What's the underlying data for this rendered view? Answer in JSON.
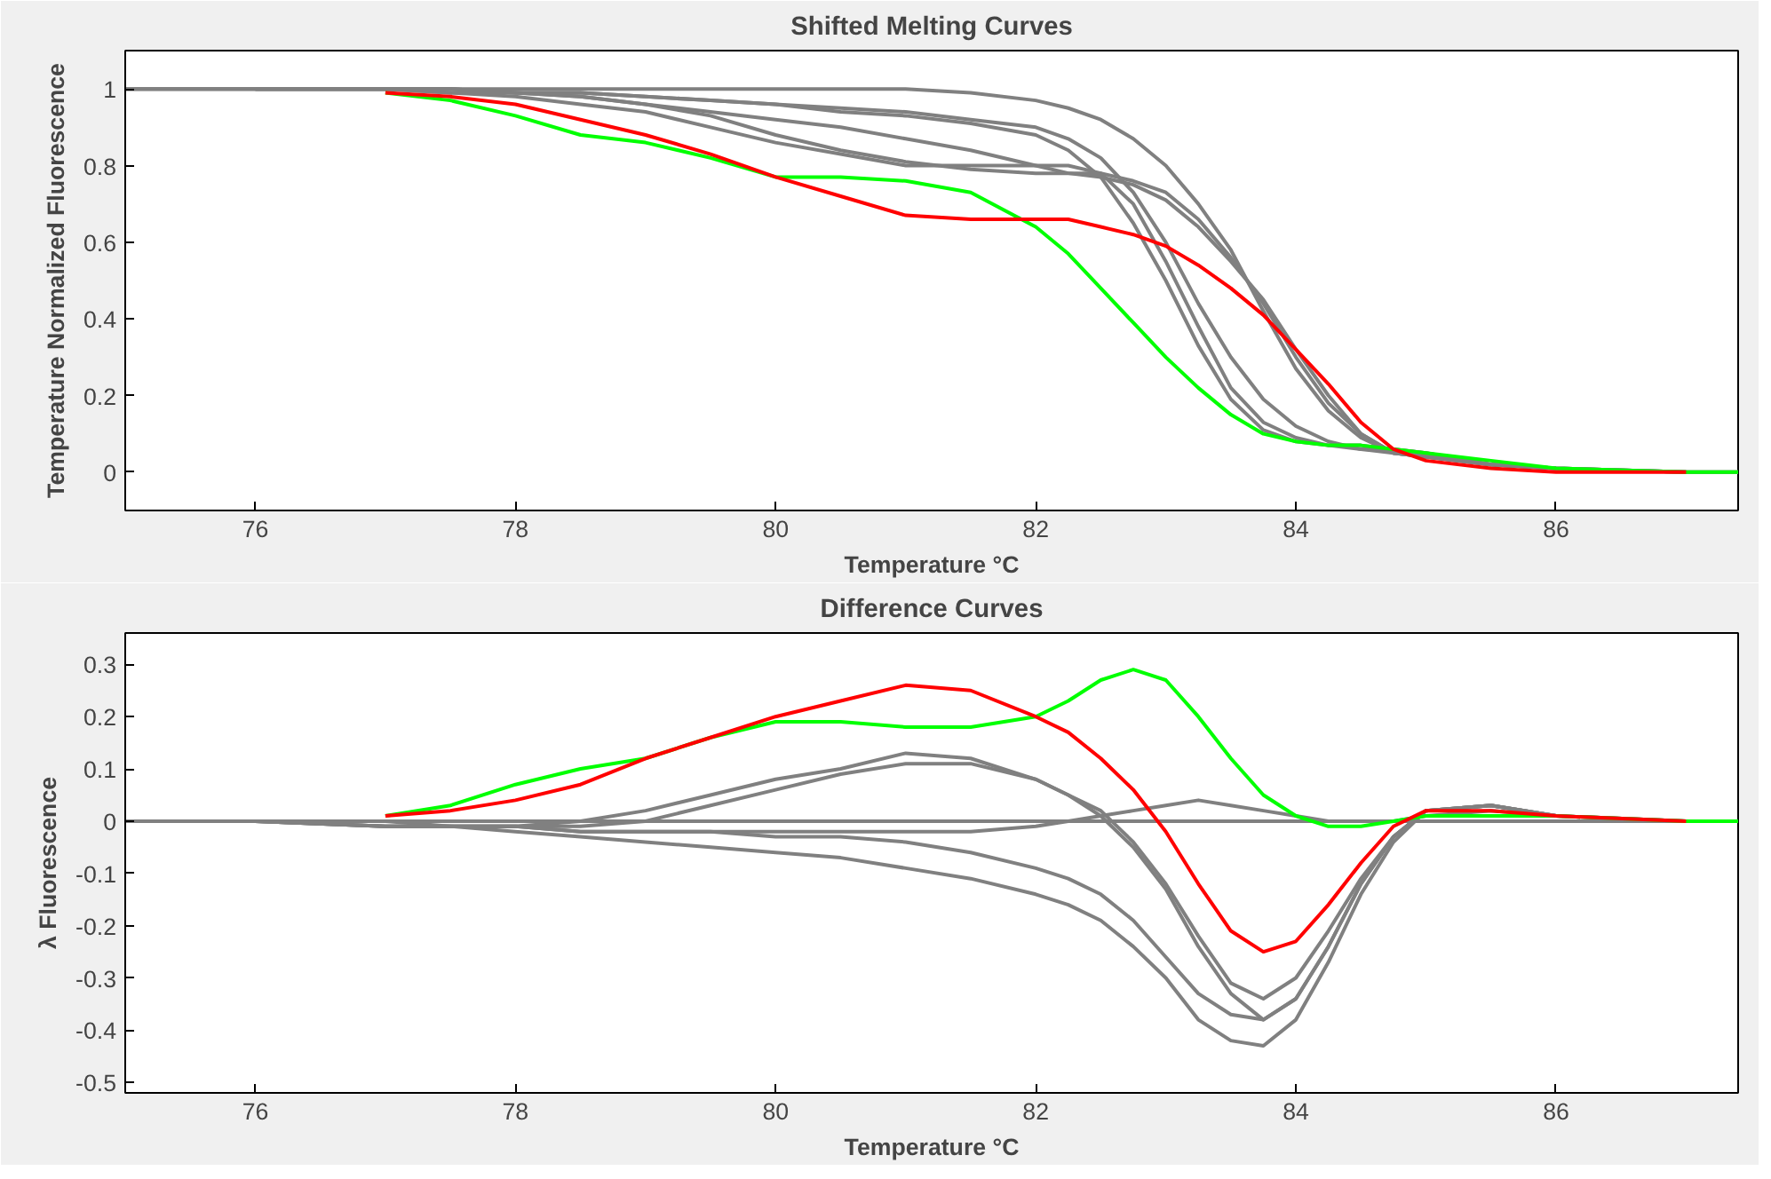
{
  "chart_data": [
    {
      "type": "line",
      "title": "Shifted Melting Curves",
      "xlabel": "Temperature °C",
      "ylabel": "Temperature Normalized Fluorescence",
      "xlim": [
        75,
        87.4
      ],
      "xticks": [
        76,
        78,
        80,
        82,
        84,
        86
      ],
      "ylim": [
        -0.1,
        1.1
      ],
      "yticks": [
        0,
        0.2,
        0.4,
        0.6,
        0.8,
        1
      ],
      "grid": false,
      "series": [
        {
          "color": "#808080",
          "x": [
            75,
            76,
            77,
            77.5,
            78,
            78.5,
            79,
            79.5,
            80,
            80.5,
            81,
            81.5,
            82,
            82.25,
            82.5,
            82.75,
            83,
            83.25,
            83.5,
            83.75,
            84,
            84.25,
            84.5,
            84.75,
            85,
            85.5,
            86,
            87,
            87.4
          ],
          "values": [
            1,
            1,
            1,
            1,
            0.99,
            0.99,
            0.98,
            0.97,
            0.96,
            0.94,
            0.93,
            0.91,
            0.88,
            0.84,
            0.77,
            0.65,
            0.5,
            0.33,
            0.19,
            0.11,
            0.08,
            0.07,
            0.07,
            0.06,
            0.05,
            0.02,
            0.01,
            0,
            0
          ]
        },
        {
          "color": "#808080",
          "x": [
            75,
            76,
            77,
            77.5,
            78,
            78.5,
            79,
            79.5,
            80,
            80.5,
            81,
            81.5,
            82,
            82.25,
            82.5,
            82.75,
            83,
            83.25,
            83.5,
            83.75,
            84,
            84.25,
            84.5,
            84.75,
            85,
            85.5,
            86,
            87
          ],
          "values": [
            1,
            1,
            1,
            0.99,
            0.98,
            0.96,
            0.94,
            0.9,
            0.86,
            0.83,
            0.8,
            0.8,
            0.8,
            0.8,
            0.78,
            0.7,
            0.55,
            0.38,
            0.22,
            0.13,
            0.09,
            0.07,
            0.06,
            0.06,
            0.05,
            0.02,
            0.01,
            0
          ]
        },
        {
          "color": "#808080",
          "x": [
            75,
            76,
            77,
            77.5,
            78,
            78.5,
            79,
            79.5,
            80,
            80.5,
            81,
            81.5,
            82,
            82.25,
            82.5,
            82.75,
            83,
            83.25,
            83.5,
            83.75,
            84,
            84.25,
            84.5,
            84.75,
            85,
            85.5,
            86
          ],
          "values": [
            1,
            1,
            1,
            1,
            1,
            1,
            1,
            1,
            1,
            1,
            1,
            0.99,
            0.97,
            0.95,
            0.92,
            0.87,
            0.8,
            0.7,
            0.58,
            0.42,
            0.27,
            0.16,
            0.09,
            0.05,
            0.04,
            0.02,
            0.01
          ]
        },
        {
          "color": "#808080",
          "x": [
            76,
            77,
            77.5,
            78,
            78.5,
            79,
            79.5,
            80,
            80.5,
            81,
            81.5,
            82,
            82.25,
            82.5,
            82.75,
            83,
            83.25,
            83.5,
            83.75,
            84,
            84.25,
            84.5,
            84.75,
            85,
            85.5,
            86,
            87,
            87.4
          ],
          "values": [
            1,
            1,
            0.99,
            0.99,
            0.98,
            0.96,
            0.94,
            0.92,
            0.9,
            0.87,
            0.84,
            0.8,
            0.78,
            0.77,
            0.75,
            0.71,
            0.64,
            0.55,
            0.45,
            0.32,
            0.2,
            0.1,
            0.05,
            0.04,
            0.02,
            0.01,
            0,
            0
          ]
        },
        {
          "color": "#808080",
          "x": [
            76,
            77,
            77.5,
            78,
            78.5,
            79,
            79.5,
            80,
            80.5,
            81,
            81.5,
            82,
            82.25,
            82.5,
            82.75,
            83,
            83.25,
            83.5,
            83.75,
            84,
            84.25,
            84.5,
            84.75,
            85,
            85.5,
            86,
            87
          ],
          "values": [
            1,
            1,
            1,
            0.99,
            0.98,
            0.96,
            0.93,
            0.88,
            0.84,
            0.81,
            0.79,
            0.78,
            0.78,
            0.78,
            0.76,
            0.73,
            0.66,
            0.56,
            0.44,
            0.3,
            0.18,
            0.1,
            0.05,
            0.04,
            0.02,
            0.01,
            0
          ]
        },
        {
          "color": "#808080",
          "x": [
            76,
            77,
            77.5,
            78,
            78.5,
            79,
            79.5,
            80,
            80.5,
            81,
            81.5,
            82,
            82.25,
            82.5,
            82.75,
            83,
            83.25,
            83.5,
            83.75,
            84,
            84.25,
            84.5,
            84.75,
            85,
            85.5,
            86
          ],
          "values": [
            1,
            1,
            1,
            0.99,
            0.99,
            0.98,
            0.97,
            0.96,
            0.95,
            0.94,
            0.92,
            0.9,
            0.87,
            0.82,
            0.73,
            0.6,
            0.44,
            0.3,
            0.19,
            0.12,
            0.08,
            0.06,
            0.05,
            0.04,
            0.02,
            0.01
          ]
        },
        {
          "color": "#00ff00",
          "x": [
            77,
            77.5,
            78,
            78.5,
            79,
            79.5,
            80,
            80.5,
            81,
            81.5,
            82,
            82.25,
            82.5,
            82.75,
            83,
            83.25,
            83.5,
            83.75,
            84,
            84.25,
            84.5,
            84.75,
            85,
            85.5,
            86,
            87,
            87.4
          ],
          "values": [
            0.99,
            0.97,
            0.93,
            0.88,
            0.86,
            0.82,
            0.77,
            0.77,
            0.76,
            0.73,
            0.64,
            0.57,
            0.48,
            0.39,
            0.3,
            0.22,
            0.15,
            0.1,
            0.08,
            0.07,
            0.07,
            0.06,
            0.05,
            0.03,
            0.01,
            0,
            0
          ]
        },
        {
          "color": "#ff0000",
          "x": [
            77,
            77.5,
            78,
            78.5,
            79,
            79.5,
            80,
            80.5,
            81,
            81.5,
            82,
            82.25,
            82.5,
            82.75,
            83,
            83.25,
            83.5,
            83.75,
            84,
            84.25,
            84.5,
            84.75,
            85,
            85.5,
            86,
            87
          ],
          "values": [
            0.99,
            0.98,
            0.96,
            0.92,
            0.88,
            0.83,
            0.77,
            0.72,
            0.67,
            0.66,
            0.66,
            0.66,
            0.64,
            0.62,
            0.59,
            0.54,
            0.48,
            0.41,
            0.32,
            0.23,
            0.13,
            0.06,
            0.03,
            0.01,
            0,
            0
          ]
        }
      ]
    },
    {
      "type": "line",
      "title": "Difference Curves",
      "xlabel": "Temperature °C",
      "ylabel": "λ Fluorescence",
      "xlim": [
        75,
        87.4
      ],
      "xticks": [
        76,
        78,
        80,
        82,
        84,
        86
      ],
      "ylim": [
        -0.52,
        0.36
      ],
      "yticks": [
        -0.5,
        -0.4,
        -0.3,
        -0.2,
        -0.1,
        0,
        0.1,
        0.2,
        0.3
      ],
      "grid": false,
      "series": [
        {
          "color": "#808080",
          "x": [
            75,
            76,
            77,
            77.5,
            78,
            78.5,
            79,
            79.5,
            80,
            80.5,
            81,
            81.5,
            82,
            82.25,
            82.5,
            82.75,
            83,
            83.25,
            83.5,
            83.75,
            84,
            84.25,
            84.5,
            84.75,
            85,
            85.5,
            86,
            87,
            87.4
          ],
          "values": [
            0,
            0,
            0,
            0,
            0,
            0,
            0,
            0,
            0,
            0,
            0,
            0,
            0,
            0,
            0,
            0,
            0,
            0,
            0,
            0,
            0,
            0,
            0,
            0,
            0,
            0,
            0,
            0,
            0
          ]
        },
        {
          "color": "#808080",
          "x": [
            75,
            76,
            77,
            77.5,
            78,
            78.5,
            79,
            79.5,
            80,
            80.5,
            81,
            81.5,
            82,
            82.25,
            82.5,
            82.75,
            83,
            83.25,
            83.5,
            83.75,
            84,
            84.25,
            84.5,
            84.75,
            85,
            85.5,
            86,
            87
          ],
          "values": [
            0,
            0,
            -0.01,
            -0.01,
            -0.01,
            0,
            0.02,
            0.05,
            0.08,
            0.1,
            0.13,
            0.12,
            0.08,
            0.05,
            0.01,
            -0.05,
            -0.13,
            -0.24,
            -0.33,
            -0.38,
            -0.34,
            -0.24,
            -0.12,
            -0.03,
            0.02,
            0.03,
            0.01,
            0
          ]
        },
        {
          "color": "#808080",
          "x": [
            75,
            76,
            77,
            77.5,
            78,
            78.5,
            79,
            79.5,
            80,
            80.5,
            81,
            81.5,
            82,
            82.25,
            82.5,
            82.75,
            83,
            83.25,
            83.5,
            83.75,
            84,
            84.25,
            84.5,
            84.75,
            85,
            85.5,
            86
          ],
          "values": [
            0,
            0,
            -0.01,
            -0.01,
            -0.01,
            -0.01,
            0,
            0.03,
            0.06,
            0.09,
            0.11,
            0.11,
            0.08,
            0.05,
            0.02,
            -0.04,
            -0.12,
            -0.22,
            -0.31,
            -0.34,
            -0.3,
            -0.21,
            -0.11,
            -0.03,
            0.02,
            0.03,
            0.01
          ]
        },
        {
          "color": "#808080",
          "x": [
            76,
            77,
            77.5,
            78,
            78.5,
            79,
            79.5,
            80,
            80.5,
            81,
            81.5,
            82,
            82.25,
            82.5,
            82.75,
            83,
            83.25,
            83.5,
            83.75,
            84,
            84.25,
            84.5,
            84.75,
            85,
            85.5,
            86,
            87,
            87.4
          ],
          "values": [
            0,
            -0.01,
            -0.01,
            -0.02,
            -0.03,
            -0.04,
            -0.05,
            -0.06,
            -0.07,
            -0.09,
            -0.11,
            -0.14,
            -0.16,
            -0.19,
            -0.24,
            -0.3,
            -0.38,
            -0.42,
            -0.43,
            -0.38,
            -0.27,
            -0.14,
            -0.04,
            0.02,
            0.03,
            0.01,
            0,
            0
          ]
        },
        {
          "color": "#808080",
          "x": [
            76,
            77,
            77.5,
            78,
            78.5,
            79,
            79.5,
            80,
            80.5,
            81,
            81.5,
            82,
            82.25,
            82.5,
            82.75,
            83,
            83.25,
            83.5,
            83.75,
            84,
            84.25,
            84.5,
            84.75,
            85,
            85.5,
            86,
            87
          ],
          "values": [
            0,
            -0.01,
            -0.01,
            -0.01,
            -0.02,
            -0.02,
            -0.02,
            -0.03,
            -0.03,
            -0.04,
            -0.06,
            -0.09,
            -0.11,
            -0.14,
            -0.19,
            -0.26,
            -0.33,
            -0.37,
            -0.38,
            -0.34,
            -0.24,
            -0.12,
            -0.03,
            0.02,
            0.03,
            0.01,
            0
          ]
        },
        {
          "color": "#808080",
          "x": [
            76,
            77,
            77.5,
            78,
            78.5,
            79,
            79.5,
            80,
            80.5,
            81,
            81.5,
            82,
            82.25,
            82.5,
            82.75,
            83,
            83.25,
            83.5,
            83.75,
            84,
            84.25,
            84.5,
            84.75,
            85,
            85.5,
            86
          ],
          "values": [
            0,
            0,
            -0.01,
            -0.01,
            -0.02,
            -0.02,
            -0.02,
            -0.02,
            -0.02,
            -0.02,
            -0.02,
            -0.01,
            0,
            0.01,
            0.02,
            0.03,
            0.04,
            0.03,
            0.02,
            0.01,
            0,
            0,
            0,
            0.01,
            0.02,
            0.01
          ]
        },
        {
          "color": "#00ff00",
          "x": [
            77,
            77.5,
            78,
            78.5,
            79,
            79.5,
            80,
            80.5,
            81,
            81.5,
            82,
            82.25,
            82.5,
            82.75,
            83,
            83.25,
            83.5,
            83.75,
            84,
            84.25,
            84.5,
            84.75,
            85,
            85.5,
            86,
            87,
            87.4
          ],
          "values": [
            0.01,
            0.03,
            0.07,
            0.1,
            0.12,
            0.16,
            0.19,
            0.19,
            0.18,
            0.18,
            0.2,
            0.23,
            0.27,
            0.29,
            0.27,
            0.2,
            0.12,
            0.05,
            0.01,
            -0.01,
            -0.01,
            0,
            0.01,
            0.01,
            0.01,
            0,
            0
          ]
        },
        {
          "color": "#ff0000",
          "x": [
            77,
            77.5,
            78,
            78.5,
            79,
            79.5,
            80,
            80.5,
            81,
            81.5,
            82,
            82.25,
            82.5,
            82.75,
            83,
            83.25,
            83.5,
            83.75,
            84,
            84.25,
            84.5,
            84.75,
            85,
            85.5,
            86,
            87
          ],
          "values": [
            0.01,
            0.02,
            0.04,
            0.07,
            0.12,
            0.16,
            0.2,
            0.23,
            0.26,
            0.25,
            0.2,
            0.17,
            0.12,
            0.06,
            -0.02,
            -0.12,
            -0.21,
            -0.25,
            -0.23,
            -0.16,
            -0.08,
            -0.01,
            0.02,
            0.02,
            0.01,
            0
          ]
        }
      ]
    }
  ]
}
